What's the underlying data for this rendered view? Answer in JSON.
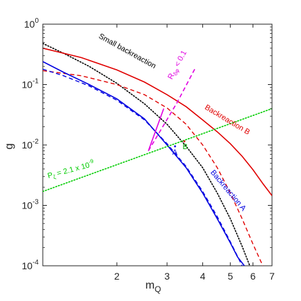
{
  "chart_data": {
    "type": "line",
    "xlabel": "m_Q",
    "ylabel": "g",
    "xscale": "log",
    "yscale": "log",
    "xlim": [
      1.1,
      7
    ],
    "ylim": [
      0.0001,
      1
    ],
    "grid": false,
    "legend": "none",
    "x_ticks": [
      {
        "value": 2,
        "label": "2"
      },
      {
        "value": 3,
        "label": "3"
      },
      {
        "value": 4,
        "label": "4"
      },
      {
        "value": 5,
        "label": "5"
      },
      {
        "value": 6,
        "label": "6"
      },
      {
        "value": 7,
        "label": "7"
      }
    ],
    "y_ticks": [
      {
        "value": 1,
        "label": "10",
        "exp": "0"
      },
      {
        "value": 0.1,
        "label": "10",
        "exp": "-1"
      },
      {
        "value": 0.01,
        "label": "10",
        "exp": "-2"
      },
      {
        "value": 0.001,
        "label": "10",
        "exp": "-3"
      },
      {
        "value": 0.0001,
        "label": "10",
        "exp": "-4"
      }
    ],
    "series": [
      {
        "key": "small",
        "name": "Small backreaction",
        "color": "#000000",
        "style": "dotted",
        "width": 1.6,
        "x": [
          1.1,
          1.3,
          1.6,
          2.0,
          2.5,
          3.0,
          3.5,
          4.0,
          4.5,
          5.0,
          5.5,
          5.85
        ],
        "y": [
          0.48,
          0.33,
          0.2,
          0.105,
          0.048,
          0.022,
          0.0095,
          0.0042,
          0.0016,
          0.0006,
          0.00021,
          0.0001
        ]
      },
      {
        "key": "backB",
        "name": "Backreaction B",
        "color": "#e00000",
        "style": "solid",
        "width": 1.6,
        "x": [
          1.1,
          1.5,
          2.0,
          2.5,
          3.0,
          3.5,
          4.0,
          4.5,
          5.0,
          5.5,
          6.0,
          6.5,
          7.0
        ],
        "y": [
          0.4,
          0.28,
          0.175,
          0.11,
          0.068,
          0.043,
          0.026,
          0.0165,
          0.0105,
          0.0065,
          0.0039,
          0.0023,
          0.00145
        ]
      },
      {
        "key": "backB_dash",
        "name": "",
        "color": "#e00000",
        "style": "dashed",
        "width": 1.4,
        "x": [
          1.1,
          1.5,
          2.0,
          2.5,
          3.0,
          3.5,
          4.0,
          4.5,
          5.0,
          5.5,
          6.0,
          6.5
        ],
        "y": [
          0.17,
          0.14,
          0.1,
          0.068,
          0.041,
          0.022,
          0.01,
          0.0042,
          0.0016,
          0.0006,
          0.00023,
          0.0001
        ]
      },
      {
        "key": "backA",
        "name": "Backreaction A",
        "color": "#0000e0",
        "style": "solid",
        "width": 1.6,
        "x": [
          1.1,
          1.3,
          1.6,
          2.0,
          2.5,
          3.0,
          3.5,
          4.0,
          4.5,
          5.0,
          5.3,
          5.6
        ],
        "y": [
          0.24,
          0.16,
          0.1,
          0.058,
          0.027,
          0.01,
          0.0042,
          0.0016,
          0.0006,
          0.00024,
          0.00014,
          0.0001
        ]
      },
      {
        "key": "backA_dash",
        "name": "",
        "color": "#0000e0",
        "style": "dashed",
        "width": 1.4,
        "x": [
          1.1,
          1.3,
          1.6,
          2.0,
          2.5,
          3.0,
          3.5,
          4.0,
          4.5,
          5.0,
          5.5
        ],
        "y": [
          0.18,
          0.14,
          0.095,
          0.055,
          0.026,
          0.0105,
          0.0044,
          0.0017,
          0.00065,
          0.00025,
          0.0001
        ]
      },
      {
        "key": "pzeta",
        "name": "P_ζ = 2.1 x 10^-9",
        "color": "#00cc00",
        "style": "dotted",
        "width": 1.6,
        "x": [
          1.1,
          7.0
        ],
        "y": [
          0.0017,
          0.04
        ]
      },
      {
        "key": "rphi",
        "name": "R_{δφ} < 0.1",
        "color": "#e000e0",
        "style": "dashed",
        "width": 1.6,
        "x": [
          2.58,
          3.25,
          3.75
        ],
        "y": [
          0.008,
          0.05,
          0.18
        ]
      },
      {
        "key": "rphi_tick",
        "name": "",
        "color": "#e000e0",
        "style": "solid",
        "width": 1.6,
        "x": [
          2.58,
          2.92
        ],
        "y": [
          0.008,
          0.04
        ]
      }
    ],
    "points": [
      {
        "key": "pt_B",
        "x": 3.45,
        "y": 0.0115,
        "color": "#e00000"
      },
      {
        "key": "pt_A",
        "x": 3.2,
        "y": 0.0095,
        "color": "#0000e0"
      }
    ],
    "annotations": [
      {
        "key": "small_lbl",
        "text": "Small backreaction",
        "color": "#000000",
        "x": 1.72,
        "y": 0.6,
        "angle": 29
      },
      {
        "key": "rphi_lbl",
        "main": "R",
        "sub": "δφ",
        "rest": " < 0.1",
        "color": "#e000e0",
        "x": 3.12,
        "y": 0.12,
        "angle": -62
      },
      {
        "key": "backB_lbl",
        "text": "Backreaction B",
        "color": "#e00000",
        "x": 4.05,
        "y": 0.04,
        "angle": 31
      },
      {
        "key": "pzeta_lbl",
        "main": "P",
        "sub": "ζ",
        "rest": " = 2.1 x 10",
        "sup": "-9",
        "color": "#00cc00",
        "x": 1.15,
        "y": 0.0028,
        "angle": -15
      },
      {
        "key": "backA_lbl",
        "text": "Backreaction A",
        "color": "#0000e0",
        "x": 4.25,
        "y": 0.0035,
        "angle": 50
      },
      {
        "key": "B_lbl",
        "text": "B",
        "color": "#00aa00",
        "x": 3.4,
        "y": 0.0085,
        "angle": 0
      },
      {
        "key": "A_lbl",
        "text": "A",
        "color": "#0000e0",
        "x": 3.13,
        "y": 0.0069,
        "angle": 0
      }
    ]
  }
}
